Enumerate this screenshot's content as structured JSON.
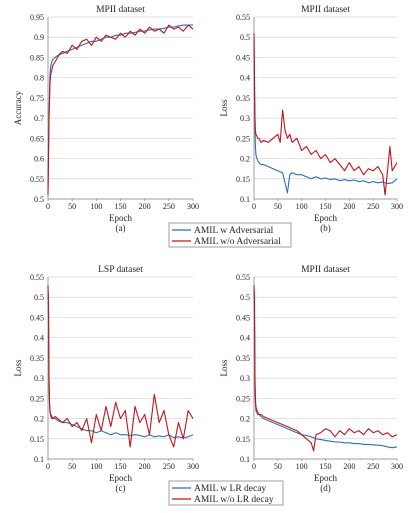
{
  "colors": {
    "blue": "#2e6db4",
    "red": "#c0141c",
    "grid": "#d4d4d4",
    "axis": "#888888"
  },
  "legends": [
    {
      "items": [
        "AMIL w Adversarial",
        "AMIL w/o Adversarial"
      ]
    },
    {
      "items": [
        "AMIL w LR decay",
        "AMIL w/o LR decay"
      ]
    }
  ],
  "chart_data": [
    {
      "type": "line",
      "title": "MPII dataset",
      "xlabel": "Epoch",
      "ylabel": "Accuracy",
      "caption": "(a)",
      "xlim": [
        0,
        300
      ],
      "ylim": [
        0.5,
        0.95
      ],
      "xticks": [
        "0",
        "50",
        "100",
        "150",
        "200",
        "250",
        "300"
      ],
      "yticks": [
        "0.5",
        "0.55",
        "0.6",
        "0.65",
        "0.7",
        "0.75",
        "0.8",
        "0.85",
        "0.9",
        "0.95"
      ],
      "grid": "horizontal",
      "series": [
        {
          "name": "AMIL w Adversarial",
          "color": "blue",
          "x": [
            0,
            1,
            2,
            3,
            4,
            5,
            6,
            8,
            10,
            15,
            20,
            30,
            40,
            50,
            60,
            70,
            80,
            90,
            100,
            110,
            120,
            130,
            140,
            150,
            160,
            170,
            180,
            190,
            200,
            210,
            220,
            230,
            240,
            250,
            260,
            270,
            280,
            290,
            300
          ],
          "y": [
            0.52,
            0.6,
            0.7,
            0.76,
            0.8,
            0.82,
            0.83,
            0.84,
            0.845,
            0.85,
            0.855,
            0.86,
            0.865,
            0.87,
            0.875,
            0.88,
            0.885,
            0.89,
            0.89,
            0.895,
            0.9,
            0.9,
            0.905,
            0.905,
            0.91,
            0.91,
            0.912,
            0.915,
            0.915,
            0.918,
            0.92,
            0.92,
            0.922,
            0.925,
            0.925,
            0.928,
            0.93,
            0.93,
            0.93
          ]
        },
        {
          "name": "AMIL w/o Adversarial",
          "color": "red",
          "x": [
            0,
            1,
            2,
            3,
            4,
            5,
            6,
            8,
            10,
            15,
            20,
            25,
            30,
            40,
            50,
            60,
            70,
            80,
            90,
            100,
            110,
            120,
            130,
            140,
            150,
            160,
            170,
            180,
            190,
            200,
            210,
            220,
            230,
            240,
            250,
            260,
            270,
            280,
            290,
            300
          ],
          "y": [
            0.51,
            0.62,
            0.7,
            0.74,
            0.78,
            0.8,
            0.81,
            0.82,
            0.83,
            0.84,
            0.85,
            0.86,
            0.865,
            0.86,
            0.88,
            0.87,
            0.89,
            0.895,
            0.88,
            0.9,
            0.89,
            0.905,
            0.9,
            0.895,
            0.91,
            0.9,
            0.915,
            0.905,
            0.92,
            0.91,
            0.925,
            0.915,
            0.92,
            0.91,
            0.93,
            0.92,
            0.925,
            0.915,
            0.93,
            0.92
          ]
        }
      ]
    },
    {
      "type": "line",
      "title": "MPII dataset",
      "xlabel": "Epoch",
      "ylabel": "Loss",
      "caption": "(b)",
      "xlim": [
        0,
        300
      ],
      "ylim": [
        0.1,
        0.55
      ],
      "xticks": [
        "0",
        "50",
        "100",
        "150",
        "200",
        "250",
        "300"
      ],
      "yticks": [
        "0.1",
        "0.15",
        "0.2",
        "0.25",
        "0.3",
        "0.35",
        "0.4",
        "0.45",
        "0.5",
        "0.55"
      ],
      "grid": "horizontal",
      "series": [
        {
          "name": "AMIL w Adversarial",
          "color": "blue",
          "x": [
            0,
            1,
            2,
            3,
            4,
            6,
            8,
            10,
            15,
            20,
            30,
            40,
            50,
            60,
            65,
            70,
            75,
            80,
            90,
            100,
            110,
            120,
            130,
            140,
            150,
            160,
            170,
            180,
            190,
            200,
            210,
            220,
            230,
            240,
            250,
            260,
            270,
            280,
            290,
            300
          ],
          "y": [
            0.5,
            0.35,
            0.27,
            0.23,
            0.21,
            0.2,
            0.195,
            0.19,
            0.185,
            0.185,
            0.18,
            0.175,
            0.17,
            0.165,
            0.14,
            0.115,
            0.16,
            0.165,
            0.16,
            0.16,
            0.155,
            0.15,
            0.155,
            0.15,
            0.152,
            0.148,
            0.15,
            0.145,
            0.148,
            0.145,
            0.147,
            0.143,
            0.145,
            0.14,
            0.143,
            0.14,
            0.142,
            0.138,
            0.14,
            0.15
          ]
        },
        {
          "name": "AMIL w/o Adversarial",
          "color": "red",
          "x": [
            0,
            1,
            2,
            3,
            4,
            6,
            8,
            10,
            15,
            20,
            30,
            40,
            50,
            55,
            60,
            65,
            70,
            75,
            80,
            90,
            100,
            110,
            120,
            130,
            140,
            150,
            160,
            170,
            180,
            190,
            200,
            210,
            220,
            230,
            240,
            250,
            260,
            270,
            275,
            280,
            285,
            290,
            300
          ],
          "y": [
            0.51,
            0.4,
            0.3,
            0.27,
            0.26,
            0.255,
            0.25,
            0.25,
            0.24,
            0.245,
            0.24,
            0.25,
            0.26,
            0.24,
            0.32,
            0.27,
            0.25,
            0.26,
            0.24,
            0.25,
            0.22,
            0.23,
            0.21,
            0.22,
            0.2,
            0.21,
            0.19,
            0.2,
            0.185,
            0.17,
            0.19,
            0.17,
            0.18,
            0.16,
            0.175,
            0.17,
            0.18,
            0.16,
            0.11,
            0.17,
            0.23,
            0.17,
            0.19
          ]
        }
      ]
    },
    {
      "type": "line",
      "title": "LSP dataset",
      "xlabel": "Epoch",
      "ylabel": "Loss",
      "caption": "(c)",
      "xlim": [
        0,
        300
      ],
      "ylim": [
        0.1,
        0.55
      ],
      "xticks": [
        "0",
        "50",
        "100",
        "150",
        "200",
        "250",
        "300"
      ],
      "yticks": [
        "0.1",
        "0.15",
        "0.2",
        "0.25",
        "0.3",
        "0.35",
        "0.4",
        "0.45",
        "0.5",
        "0.55"
      ],
      "grid": "horizontal",
      "series": [
        {
          "name": "AMIL w LR decay",
          "color": "blue",
          "x": [
            0,
            1,
            2,
            3,
            4,
            5,
            6,
            8,
            10,
            15,
            20,
            30,
            40,
            50,
            60,
            70,
            80,
            90,
            100,
            110,
            120,
            130,
            140,
            150,
            160,
            170,
            180,
            190,
            200,
            210,
            220,
            230,
            240,
            250,
            260,
            270,
            280,
            290,
            300
          ],
          "y": [
            0.52,
            0.5,
            0.3,
            0.24,
            0.22,
            0.215,
            0.21,
            0.205,
            0.2,
            0.2,
            0.195,
            0.19,
            0.19,
            0.185,
            0.18,
            0.175,
            0.17,
            0.17,
            0.165,
            0.17,
            0.165,
            0.16,
            0.165,
            0.16,
            0.16,
            0.158,
            0.16,
            0.158,
            0.155,
            0.16,
            0.155,
            0.157,
            0.155,
            0.16,
            0.153,
            0.155,
            0.152,
            0.155,
            0.16
          ]
        },
        {
          "name": "AMIL w/o LR decay",
          "color": "red",
          "x": [
            0,
            1,
            2,
            3,
            4,
            5,
            6,
            8,
            10,
            15,
            20,
            30,
            40,
            50,
            60,
            70,
            80,
            90,
            100,
            110,
            120,
            130,
            140,
            150,
            160,
            170,
            180,
            190,
            200,
            210,
            220,
            230,
            240,
            250,
            260,
            265,
            270,
            280,
            290,
            300
          ],
          "y": [
            0.53,
            0.45,
            0.3,
            0.24,
            0.22,
            0.21,
            0.205,
            0.2,
            0.2,
            0.205,
            0.2,
            0.19,
            0.2,
            0.18,
            0.19,
            0.17,
            0.2,
            0.14,
            0.21,
            0.17,
            0.23,
            0.18,
            0.24,
            0.2,
            0.22,
            0.13,
            0.23,
            0.19,
            0.21,
            0.16,
            0.26,
            0.19,
            0.22,
            0.16,
            0.13,
            0.16,
            0.19,
            0.15,
            0.22,
            0.2
          ]
        }
      ]
    },
    {
      "type": "line",
      "title": "MPII dataset",
      "xlabel": "Epoch",
      "ylabel": "Loss",
      "caption": "(d)",
      "xlim": [
        0,
        300
      ],
      "ylim": [
        0.1,
        0.55
      ],
      "xticks": [
        "0",
        "50",
        "100",
        "150",
        "200",
        "250",
        "300"
      ],
      "yticks": [
        "0.1",
        "0.15",
        "0.2",
        "0.25",
        "0.3",
        "0.35",
        "0.4",
        "0.45",
        "0.5",
        "0.55"
      ],
      "grid": "horizontal",
      "series": [
        {
          "name": "AMIL w LR decay",
          "color": "blue",
          "x": [
            0,
            1,
            2,
            3,
            4,
            6,
            8,
            10,
            15,
            20,
            30,
            40,
            50,
            60,
            70,
            80,
            90,
            100,
            110,
            120,
            130,
            140,
            150,
            160,
            170,
            180,
            190,
            200,
            210,
            220,
            230,
            240,
            250,
            260,
            270,
            280,
            290,
            300
          ],
          "y": [
            0.52,
            0.45,
            0.28,
            0.24,
            0.22,
            0.215,
            0.21,
            0.21,
            0.205,
            0.2,
            0.195,
            0.19,
            0.185,
            0.18,
            0.175,
            0.17,
            0.165,
            0.16,
            0.158,
            0.155,
            0.15,
            0.148,
            0.146,
            0.144,
            0.142,
            0.142,
            0.14,
            0.14,
            0.138,
            0.138,
            0.136,
            0.136,
            0.135,
            0.134,
            0.133,
            0.13,
            0.128,
            0.13
          ]
        },
        {
          "name": "AMIL w/o LR decay",
          "color": "red",
          "x": [
            0,
            1,
            2,
            3,
            4,
            6,
            8,
            10,
            15,
            20,
            30,
            40,
            50,
            60,
            70,
            80,
            90,
            100,
            110,
            120,
            125,
            130,
            140,
            150,
            160,
            170,
            180,
            190,
            200,
            210,
            220,
            230,
            240,
            250,
            260,
            270,
            280,
            290,
            300
          ],
          "y": [
            0.53,
            0.5,
            0.3,
            0.25,
            0.23,
            0.22,
            0.215,
            0.21,
            0.21,
            0.205,
            0.2,
            0.195,
            0.19,
            0.185,
            0.18,
            0.175,
            0.17,
            0.16,
            0.15,
            0.14,
            0.12,
            0.16,
            0.165,
            0.175,
            0.17,
            0.155,
            0.17,
            0.16,
            0.175,
            0.165,
            0.17,
            0.16,
            0.175,
            0.165,
            0.17,
            0.16,
            0.165,
            0.155,
            0.16
          ]
        }
      ]
    }
  ]
}
